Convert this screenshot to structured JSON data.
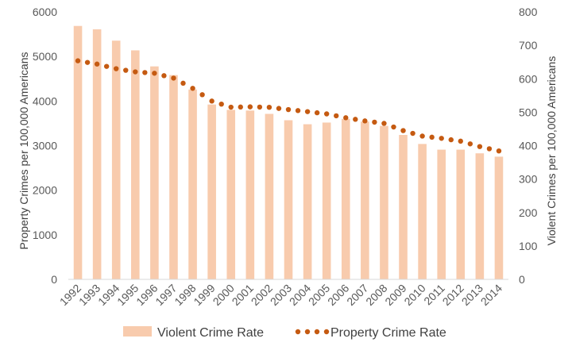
{
  "chart_data": {
    "type": "bar",
    "title": "",
    "categories": [
      "1992",
      "1993",
      "1994",
      "1995",
      "1996",
      "1997",
      "1998",
      "1999",
      "2000",
      "2001",
      "2002",
      "2003",
      "2004",
      "2005",
      "2006",
      "2007",
      "2008",
      "2009",
      "2010",
      "2011",
      "2012",
      "2013",
      "2014"
    ],
    "series": [
      {
        "name": "Violent Crime Rate",
        "kind": "bar",
        "axis": "right",
        "color": "#F8CBAD",
        "values": [
          758,
          748,
          714,
          685,
          637,
          611,
          568,
          523,
          507,
          505,
          495,
          476,
          464,
          469,
          480,
          472,
          459,
          432,
          405,
          388,
          388,
          377,
          367
        ]
      },
      {
        "name": "Property Crime Rate",
        "kind": "dotted-line",
        "axis": "left",
        "color": "#C55A11",
        "values": [
          4903,
          4830,
          4726,
          4655,
          4624,
          4515,
          4286,
          4000,
          3863,
          3870,
          3860,
          3809,
          3763,
          3712,
          3626,
          3555,
          3499,
          3337,
          3214,
          3164,
          3100,
          2979,
          2881
        ]
      }
    ],
    "y_left": {
      "label": "Property Crimes per 100,000 Americans",
      "min": 0,
      "max": 6000,
      "step": 1000,
      "ticks": [
        "0",
        "1000",
        "2000",
        "3000",
        "4000",
        "5000",
        "6000"
      ]
    },
    "y_right": {
      "label": "Violent Crimes per 100,000 Americans",
      "min": 0,
      "max": 800,
      "step": 100,
      "ticks": [
        "0",
        "100",
        "200",
        "300",
        "400",
        "500",
        "600",
        "700",
        "800"
      ]
    },
    "grid": false,
    "legend_position": "bottom"
  },
  "legend": {
    "bar_label": "Violent Crime Rate",
    "line_label": "Property Crime Rate"
  }
}
